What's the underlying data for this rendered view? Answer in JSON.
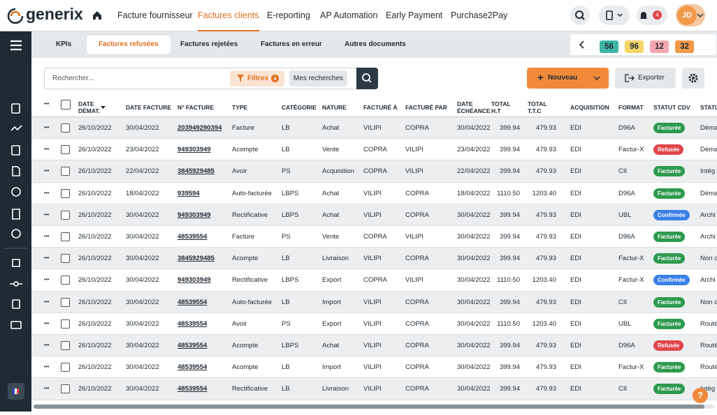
{
  "nav": {
    "logo": "generix",
    "items": [
      "Facture fournisseur",
      "Factures clients",
      "E-reporting",
      "AP Automation",
      "Early Payment",
      "Purchase2Pay"
    ],
    "active": 1,
    "bell_count": "4",
    "avatar": "JD"
  },
  "tabs": {
    "items": [
      "KPIs",
      "Factures refusées",
      "Factures rejetées",
      "Factures en erreur",
      "Autres documents"
    ],
    "active": 1,
    "counters": [
      {
        "label": "56",
        "color": "#3fb5a5"
      },
      {
        "label": "96",
        "color": "#f5d56a"
      },
      {
        "label": "12",
        "color": "#f4a7b0"
      },
      {
        "label": "32",
        "color": "#f29a4a"
      }
    ]
  },
  "toolbar": {
    "search_placeholder": "Rechercher...",
    "filters": "Filtres",
    "filters_count": "4",
    "saved": "Mes recherches",
    "new": "Nouveau",
    "export": "Exporter"
  },
  "table": {
    "headers": [
      "DATE\nDÉMAT.",
      "DATE FACTURE",
      "N° FACTURE",
      "TYPE",
      "CATÉGORIE",
      "NATURE",
      "FACTURÉ À",
      "FACTURÉ PAR",
      "DATE\nÉCHÉANCE",
      "TOTAL\nH.T",
      "TOTAL\nT.T.C",
      "ACQUISITION",
      "FORMAT",
      "STATUT CDV",
      "STATUT"
    ],
    "rows": [
      {
        "cells": [
          "26/10/2022",
          "30/04/2022",
          "203949290394",
          "Facture",
          "LB",
          "Achat",
          "VILIPI",
          "COPRA",
          "30/04/2022",
          "399.94",
          "479.93",
          "EDI",
          "D96A"
        ],
        "status": "Facturée",
        "status_color": "#2e9a4e",
        "state": "Déma"
      },
      {
        "cells": [
          "26/10/2022",
          "23/04/2022",
          "949303949",
          "Acompte",
          "LB",
          "Vente",
          "COPRA",
          "VILIPI",
          "23/04/2022",
          "399.94",
          "479.93",
          "EDI",
          "Factur-X"
        ],
        "status": "Refusée",
        "status_color": "#e0464a",
        "state": "Déma"
      },
      {
        "cells": [
          "26/10/2022",
          "22/04/2022",
          "3845929485",
          "Avoir",
          "PS",
          "Acquisition",
          "COPRA",
          "VILIPI",
          "22/04/2022",
          "399.94",
          "479.93",
          "EDI",
          "CII"
        ],
        "status": "Facturée",
        "status_color": "#2e9a4e",
        "state": "Intég"
      },
      {
        "cells": [
          "26/10/2022",
          "18/04/2022",
          "939594",
          "Auto-facturée",
          "LBPS",
          "Achat",
          "VILIPI",
          "COPRA",
          "18/04/2022",
          "1110.50",
          "1203.40",
          "EDI",
          "D96A"
        ],
        "status": "Facturée",
        "status_color": "#2e9a4e",
        "state": "Déma"
      },
      {
        "cells": [
          "26/10/2022",
          "30/04/2022",
          "949303949",
          "Rectificative",
          "LBPS",
          "Achat",
          "VILIPI",
          "COPRA",
          "30/04/2022",
          "399.94",
          "479.93",
          "EDI",
          "UBL"
        ],
        "status": "Confirmée",
        "status_color": "#3b7fe8",
        "state": "Archi"
      },
      {
        "cells": [
          "26/10/2022",
          "30/04/2022",
          "48539554",
          "Facture",
          "PS",
          "Vente",
          "COPRA",
          "VILIPI",
          "30/04/2022",
          "399.94",
          "479.93",
          "EDI",
          "D96A"
        ],
        "status": "Facturée",
        "status_color": "#2e9a4e",
        "state": "Archi"
      },
      {
        "cells": [
          "26/10/2022",
          "30/04/2022",
          "3845929485",
          "Acompte",
          "LB",
          "Livraison",
          "VILIPI",
          "COPRA",
          "30/04/2022",
          "399.94",
          "479.93",
          "EDI",
          "Factur-X"
        ],
        "status": "Facturée",
        "status_color": "#2e9a4e",
        "state": "Non c"
      },
      {
        "cells": [
          "26/10/2022",
          "30/04/2022",
          "949303949",
          "Rectificative",
          "LBPS",
          "Export",
          "COPRA",
          "VILIPI",
          "30/04/2022",
          "1110.50",
          "1203.40",
          "EDI",
          "Factur-X"
        ],
        "status": "Confirmée",
        "status_color": "#3b7fe8",
        "state": "Archi"
      },
      {
        "cells": [
          "26/10/2022",
          "30/04/2022",
          "48539554",
          "Auto-facturée",
          "LB",
          "Import",
          "VILIPI",
          "COPRA",
          "30/04/2022",
          "399.94",
          "479.93",
          "EDI",
          "CII"
        ],
        "status": "Facturée",
        "status_color": "#2e9a4e",
        "state": "Non c"
      },
      {
        "cells": [
          "26/10/2022",
          "30/04/2022",
          "48539554",
          "Avoir",
          "PS",
          "Export",
          "VILIPI",
          "COPRA",
          "30/04/2022",
          "1110.50",
          "1203.40",
          "EDI",
          "UBL"
        ],
        "status": "Facturée",
        "status_color": "#2e9a4e",
        "state": "Routé"
      },
      {
        "cells": [
          "26/10/2022",
          "30/04/2022",
          "48539554",
          "Acompte",
          "LBPS",
          "Achat",
          "VILIPI",
          "COPRA",
          "30/04/2022",
          "399.94",
          "479.93",
          "EDI",
          "D96A"
        ],
        "status": "Refusée",
        "status_color": "#e0464a",
        "state": "Routé"
      },
      {
        "cells": [
          "26/10/2022",
          "30/04/2022",
          "48539554",
          "Acompte",
          "LB",
          "Import",
          "VILIPI",
          "COPRA",
          "30/04/2022",
          "399.94",
          "479.93",
          "EDI",
          "Factur-X"
        ],
        "status": "Facturée",
        "status_color": "#2e9a4e",
        "state": "Routé"
      },
      {
        "cells": [
          "26/10/2022",
          "30/04/2022",
          "48539554",
          "Rectificative",
          "LB",
          "Livraison",
          "VILIPI",
          "COPRA",
          "30/04/2022",
          "399.94",
          "479.93",
          "EDI",
          "CII"
        ],
        "status": "Facturée",
        "status_color": "#2e9a4e",
        "state": "Intég"
      }
    ]
  }
}
